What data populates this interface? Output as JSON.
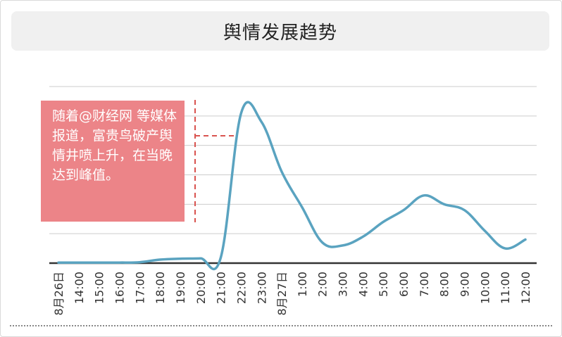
{
  "chart_data": {
    "type": "line",
    "title": "舆情发展趋势",
    "annotation": "随着@财经网 等媒体报道，富贵鸟破产舆情井喷上升，在当晚达到峰值。",
    "categories": [
      "8月26日",
      "14:00",
      "15:00",
      "16:00",
      "17:00",
      "18:00",
      "19:00",
      "20:00",
      "21:00",
      "22:00",
      "23:00",
      "8月27日",
      "1:00",
      "2:00",
      "3:00",
      "4:00",
      "5:00",
      "6:00",
      "7:00",
      "8:00",
      "9:00",
      "10:00",
      "11:00",
      "12:00"
    ],
    "series": [
      {
        "values": [
          0.2,
          0.2,
          0.2,
          0.2,
          0.3,
          1.2,
          1.5,
          1.6,
          2,
          51,
          48,
          31,
          19,
          7,
          6,
          9,
          14,
          18,
          23,
          20,
          18,
          11,
          5,
          8
        ]
      }
    ],
    "ylim": [
      0,
      60
    ],
    "grid": true,
    "colors": {
      "line": "#5aa3c0",
      "callout": "#ec8488",
      "marker": "#d9534f",
      "grid": "#cccccc",
      "baseline": "#333333"
    }
  }
}
